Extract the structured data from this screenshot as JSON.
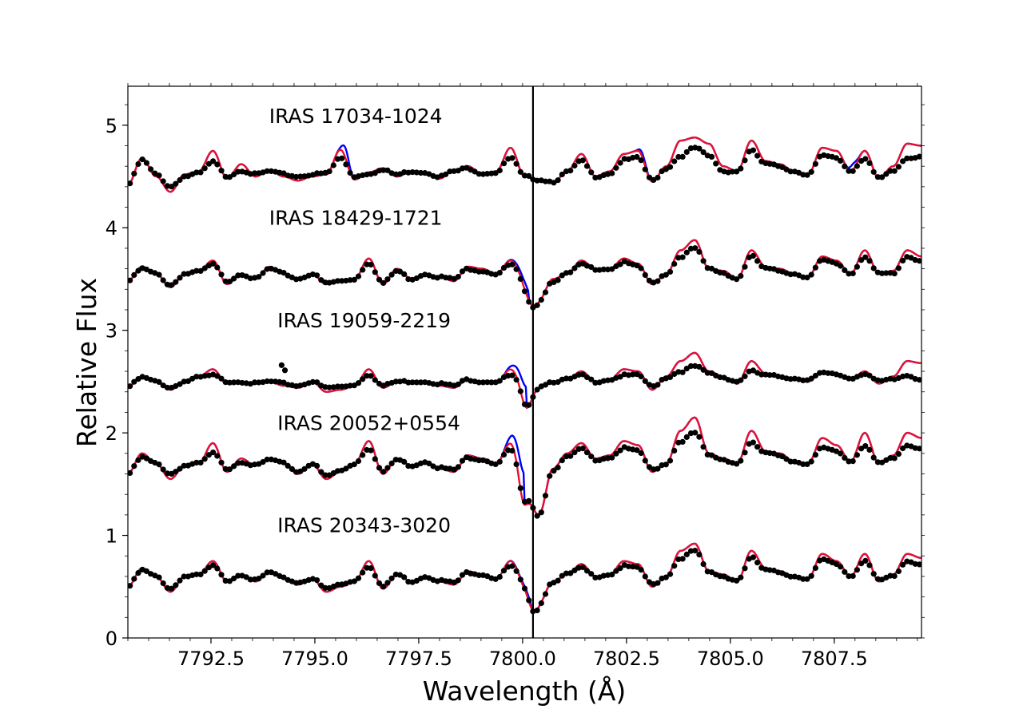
{
  "chart_data": {
    "type": "line",
    "title": "",
    "xlabel": "Wavelength (Å)",
    "ylabel": "Relative Flux",
    "xlim": [
      7790.5,
      7809.6
    ],
    "ylim": [
      0,
      5.38
    ],
    "xticks": [
      7792.5,
      7795.0,
      7797.5,
      7800.0,
      7802.5,
      7805.0,
      7807.5
    ],
    "xtick_labels": [
      "7792.5",
      "7795.0",
      "7797.5",
      "7800.0",
      "7802.5",
      "7805.0",
      "7807.5"
    ],
    "yticks": [
      0,
      1,
      2,
      3,
      4,
      5
    ],
    "ytick_labels": [
      "0",
      "1",
      "2",
      "3",
      "4",
      "5"
    ],
    "vertical_line_x": 7800.25,
    "grid": false,
    "legend": "none",
    "colors": {
      "observed": "#000000",
      "model_a": "#0000ff",
      "model_b": "#e8112d"
    },
    "panels": [
      {
        "label": "IRAS 17034-1024",
        "label_x": 7793.9,
        "label_y": 5.02,
        "offset": 4.5,
        "base": [
          4.42,
          4.68,
          4.5,
          4.35,
          4.52,
          4.55,
          4.75,
          4.48,
          4.62,
          4.5,
          4.56,
          4.5,
          4.46,
          4.5,
          4.52,
          4.76,
          4.47,
          4.54,
          4.58,
          4.5,
          4.55,
          4.52,
          4.48,
          4.56,
          4.6,
          4.52,
          4.55,
          4.78,
          4.5,
          4.46,
          4.44,
          4.55,
          4.72,
          4.5,
          4.55,
          4.72,
          4.75,
          4.45,
          4.6,
          4.85,
          4.88,
          4.82,
          4.6,
          4.55,
          4.85,
          4.65,
          4.62,
          4.55,
          4.52,
          4.78,
          4.75,
          4.55,
          4.75,
          4.48,
          4.6,
          4.82,
          4.8
        ],
        "obs": [
          4.42,
          4.66,
          4.52,
          4.4,
          4.5,
          4.53,
          4.64,
          4.5,
          4.56,
          4.52,
          4.55,
          4.52,
          4.5,
          4.52,
          4.53,
          4.68,
          4.5,
          4.53,
          4.56,
          4.52,
          4.55,
          4.54,
          4.5,
          4.55,
          4.58,
          4.53,
          4.54,
          4.68,
          4.5,
          4.47,
          4.45,
          4.54,
          4.65,
          4.5,
          4.53,
          4.66,
          4.68,
          4.46,
          4.58,
          4.7,
          4.78,
          4.7,
          4.55,
          4.55,
          4.75,
          4.62,
          4.6,
          4.55,
          4.52,
          4.7,
          4.68,
          4.55,
          4.68,
          4.48,
          4.55,
          4.68,
          4.7
        ],
        "blue_bumps": [
          [
            7795.75,
            0.1
          ],
          [
            7807.95,
            0.06
          ],
          [
            7802.9,
            0.04
          ]
        ],
        "obs_gaps": []
      },
      {
        "label": "IRAS 18429-1721",
        "label_x": 7793.9,
        "label_y": 4.03,
        "offset": 3.5,
        "base": [
          3.48,
          3.62,
          3.55,
          3.42,
          3.55,
          3.58,
          3.68,
          3.45,
          3.55,
          3.5,
          3.62,
          3.55,
          3.5,
          3.55,
          3.45,
          3.48,
          3.5,
          3.7,
          3.45,
          3.6,
          3.5,
          3.55,
          3.52,
          3.48,
          3.62,
          3.6,
          3.55,
          3.68,
          3.55,
          3.3,
          3.5,
          3.55,
          3.68,
          3.6,
          3.6,
          3.7,
          3.65,
          3.45,
          3.55,
          3.78,
          3.88,
          3.6,
          3.58,
          3.5,
          3.78,
          3.62,
          3.6,
          3.55,
          3.52,
          3.72,
          3.68,
          3.55,
          3.78,
          3.55,
          3.58,
          3.78,
          3.72
        ],
        "obs": [
          3.48,
          3.6,
          3.55,
          3.44,
          3.55,
          3.57,
          3.64,
          3.48,
          3.55,
          3.5,
          3.6,
          3.55,
          3.5,
          3.55,
          3.46,
          3.48,
          3.5,
          3.66,
          3.46,
          3.58,
          3.5,
          3.55,
          3.52,
          3.5,
          3.6,
          3.58,
          3.55,
          3.64,
          3.52,
          3.3,
          3.48,
          3.55,
          3.64,
          3.6,
          3.6,
          3.66,
          3.62,
          3.46,
          3.55,
          3.72,
          3.8,
          3.6,
          3.56,
          3.5,
          3.72,
          3.6,
          3.58,
          3.55,
          3.52,
          3.68,
          3.65,
          3.55,
          3.72,
          3.55,
          3.55,
          3.72,
          3.68
        ],
        "dip_x": 7800.15,
        "dip_depth": 0.35,
        "blue_shoulder": 0.08,
        "obs_gaps": []
      },
      {
        "label": "IRAS 19059-2219",
        "label_x": 7794.1,
        "label_y": 3.03,
        "offset": 2.5,
        "base": [
          2.45,
          2.55,
          2.5,
          2.42,
          2.5,
          2.55,
          2.62,
          2.48,
          2.5,
          2.48,
          2.5,
          2.46,
          2.44,
          2.5,
          2.4,
          2.42,
          2.46,
          2.62,
          2.44,
          2.5,
          2.48,
          2.5,
          2.46,
          2.44,
          2.52,
          2.5,
          2.48,
          2.62,
          2.5,
          2.45,
          2.5,
          2.52,
          2.6,
          2.5,
          2.52,
          2.62,
          2.6,
          2.42,
          2.55,
          2.7,
          2.78,
          2.6,
          2.55,
          2.48,
          2.7,
          2.58,
          2.55,
          2.52,
          2.5,
          2.6,
          2.58,
          2.52,
          2.6,
          2.48,
          2.55,
          2.7,
          2.68
        ],
        "obs": [
          2.45,
          2.54,
          2.5,
          2.44,
          2.5,
          2.54,
          2.56,
          2.5,
          2.5,
          2.48,
          2.5,
          2.48,
          2.46,
          2.5,
          2.44,
          2.45,
          2.47,
          2.57,
          2.46,
          2.5,
          2.5,
          2.5,
          2.48,
          2.46,
          2.52,
          2.5,
          2.5,
          2.56,
          2.5,
          2.46,
          2.5,
          2.52,
          2.56,
          2.5,
          2.52,
          2.56,
          2.56,
          2.45,
          2.54,
          2.6,
          2.65,
          2.58,
          2.54,
          2.5,
          2.6,
          2.56,
          2.55,
          2.53,
          2.52,
          2.58,
          2.57,
          2.53,
          2.58,
          2.5,
          2.52,
          2.56,
          2.52
        ],
        "dip_x": 7800.1,
        "dip_depth": 0.42,
        "blue_shoulder": 0.2,
        "obs_spike": [
          7794.2,
          2.66
        ],
        "obs_gaps": []
      },
      {
        "label": "IRAS 20052+0554",
        "label_x": 7794.1,
        "label_y": 2.03,
        "offset": 1.7,
        "base": [
          1.6,
          1.8,
          1.7,
          1.55,
          1.68,
          1.7,
          1.9,
          1.62,
          1.75,
          1.68,
          1.75,
          1.7,
          1.6,
          1.7,
          1.55,
          1.62,
          1.7,
          1.92,
          1.6,
          1.75,
          1.68,
          1.72,
          1.65,
          1.62,
          1.78,
          1.75,
          1.7,
          1.9,
          1.6,
          1.2,
          1.65,
          1.8,
          1.9,
          1.75,
          1.78,
          1.92,
          1.88,
          1.62,
          1.7,
          2.02,
          2.15,
          1.8,
          1.75,
          1.7,
          2.02,
          1.82,
          1.8,
          1.72,
          1.7,
          1.95,
          1.88,
          1.72,
          2.0,
          1.7,
          1.78,
          2.0,
          1.95
        ],
        "obs": [
          1.6,
          1.76,
          1.7,
          1.6,
          1.68,
          1.7,
          1.8,
          1.65,
          1.72,
          1.68,
          1.74,
          1.7,
          1.62,
          1.7,
          1.58,
          1.63,
          1.7,
          1.85,
          1.62,
          1.74,
          1.68,
          1.72,
          1.66,
          1.64,
          1.76,
          1.74,
          1.7,
          1.84,
          1.62,
          1.2,
          1.64,
          1.76,
          1.84,
          1.74,
          1.76,
          1.85,
          1.82,
          1.64,
          1.7,
          1.92,
          2.0,
          1.78,
          1.74,
          1.7,
          1.9,
          1.8,
          1.78,
          1.72,
          1.7,
          1.85,
          1.82,
          1.72,
          1.88,
          1.7,
          1.75,
          1.88,
          1.85
        ],
        "dip_x": 7800.05,
        "dip_depth": 0.5,
        "blue_shoulder": 0.3,
        "obs_gaps": []
      },
      {
        "label": "IRAS 20343-3020",
        "label_x": 7794.1,
        "label_y": 1.03,
        "offset": 0.5,
        "base": [
          0.5,
          0.68,
          0.6,
          0.45,
          0.6,
          0.62,
          0.75,
          0.55,
          0.62,
          0.55,
          0.65,
          0.58,
          0.52,
          0.58,
          0.45,
          0.5,
          0.55,
          0.75,
          0.48,
          0.62,
          0.55,
          0.6,
          0.55,
          0.52,
          0.65,
          0.62,
          0.58,
          0.75,
          0.55,
          0.35,
          0.55,
          0.62,
          0.72,
          0.6,
          0.62,
          0.75,
          0.72,
          0.5,
          0.6,
          0.85,
          0.92,
          0.65,
          0.62,
          0.55,
          0.85,
          0.68,
          0.65,
          0.6,
          0.58,
          0.82,
          0.75,
          0.6,
          0.82,
          0.55,
          0.62,
          0.82,
          0.78
        ],
        "obs": [
          0.5,
          0.66,
          0.6,
          0.48,
          0.6,
          0.61,
          0.7,
          0.56,
          0.62,
          0.56,
          0.64,
          0.58,
          0.54,
          0.58,
          0.48,
          0.52,
          0.56,
          0.7,
          0.5,
          0.62,
          0.55,
          0.6,
          0.56,
          0.54,
          0.64,
          0.62,
          0.58,
          0.7,
          0.55,
          0.35,
          0.55,
          0.62,
          0.68,
          0.6,
          0.62,
          0.7,
          0.68,
          0.52,
          0.6,
          0.78,
          0.85,
          0.64,
          0.6,
          0.56,
          0.78,
          0.66,
          0.64,
          0.6,
          0.58,
          0.76,
          0.72,
          0.6,
          0.76,
          0.56,
          0.6,
          0.75,
          0.72
        ],
        "dip_x": 7800.2,
        "dip_depth": 0.28,
        "blue_shoulder": 0.04,
        "obs_gaps": []
      }
    ]
  }
}
